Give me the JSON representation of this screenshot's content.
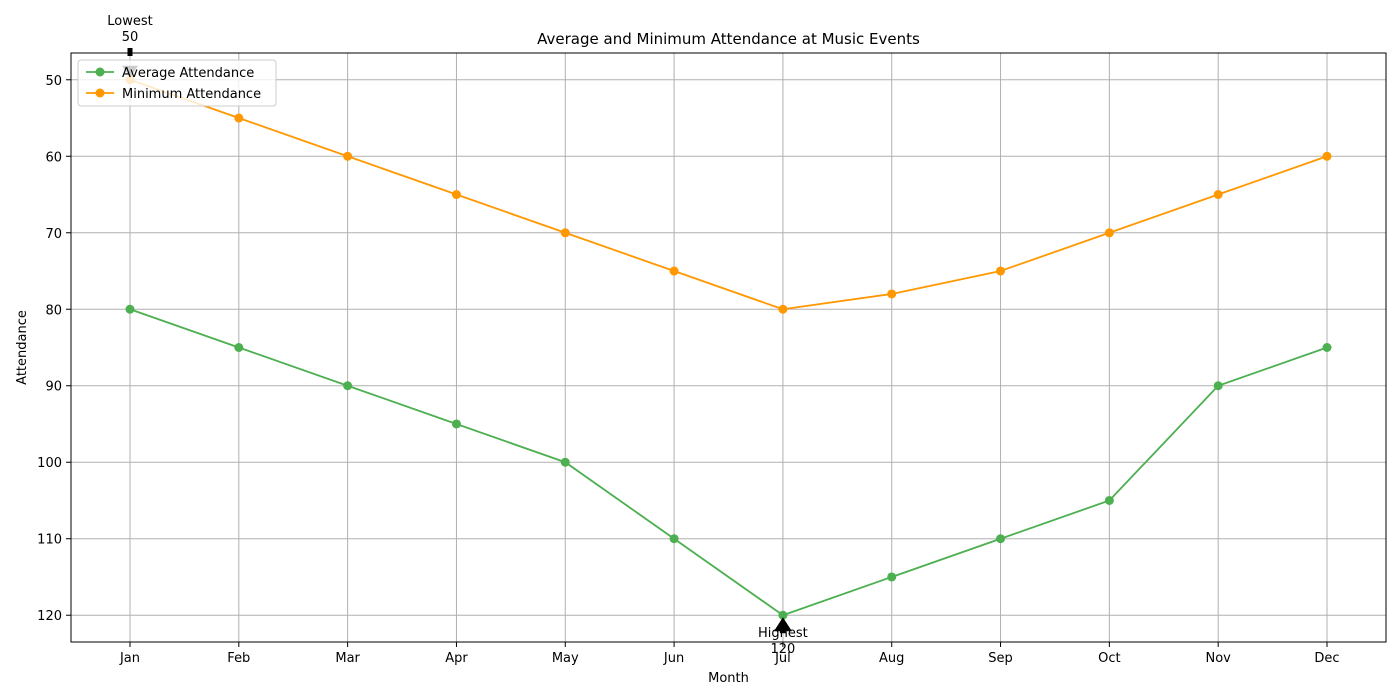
{
  "chart_data": {
    "type": "line",
    "title": "Average and Minimum Attendance at Music Events",
    "xlabel": "Month",
    "ylabel": "Attendance",
    "categories": [
      "Jan",
      "Feb",
      "Mar",
      "Apr",
      "May",
      "Jun",
      "Jul",
      "Aug",
      "Sep",
      "Oct",
      "Nov",
      "Dec"
    ],
    "y_inverted": true,
    "ylim": [
      123.5,
      46.5
    ],
    "yticks": [
      50,
      60,
      70,
      80,
      90,
      100,
      110,
      120
    ],
    "grid": true,
    "legend_position": "top-left",
    "series": [
      {
        "name": "Average Attendance",
        "color": "#4caf50",
        "marker": "circle",
        "values": [
          80,
          85,
          90,
          95,
          100,
          110,
          120,
          115,
          110,
          105,
          90,
          85
        ]
      },
      {
        "name": "Minimum Attendance",
        "color": "#ff9800",
        "marker": "circle",
        "values": [
          50,
          55,
          60,
          65,
          70,
          75,
          80,
          78,
          75,
          70,
          65,
          60
        ]
      }
    ],
    "annotations": [
      {
        "label": "Lowest",
        "value_text": "50",
        "category": "Jan",
        "value": 50,
        "placement": "above"
      },
      {
        "label": "Highest",
        "value_text": "120",
        "category": "Jul",
        "value": 120,
        "placement": "below"
      }
    ]
  }
}
